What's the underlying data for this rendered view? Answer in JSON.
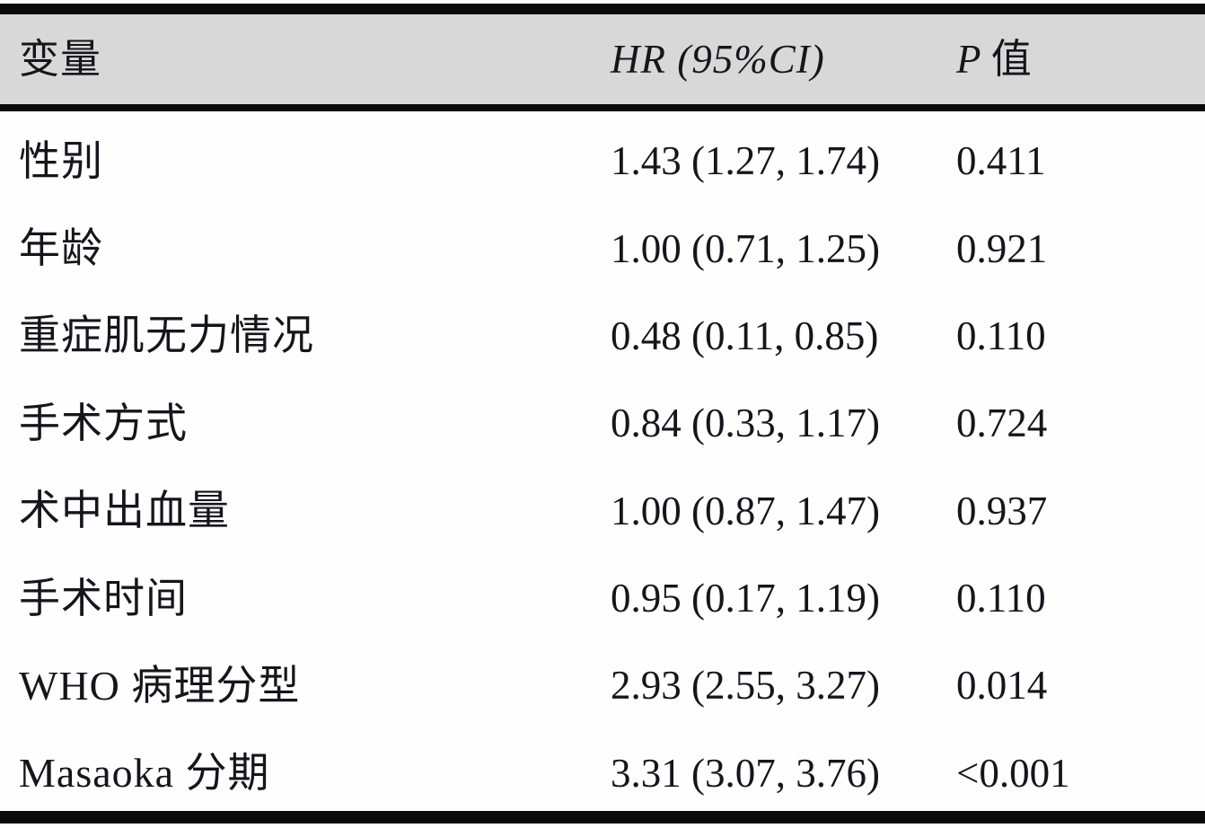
{
  "table": {
    "title_semantic": "univariate-analysis-hr-table",
    "header": {
      "variable": "变量",
      "hr": "HR (95%CI)",
      "p_italic": "P",
      "p_rest": " 值"
    },
    "rows": [
      {
        "variable": "性别",
        "hr": "1.43 (1.27, 1.74)",
        "p": "0.411"
      },
      {
        "variable": "年龄",
        "hr": "1.00 (0.71, 1.25)",
        "p": "0.921"
      },
      {
        "variable": "重症肌无力情况",
        "hr": "0.48 (0.11, 0.85)",
        "p": "0.110"
      },
      {
        "variable": "手术方式",
        "hr": "0.84 (0.33, 1.17)",
        "p": "0.724"
      },
      {
        "variable": "术中出血量",
        "hr": "1.00 (0.87, 1.47)",
        "p": "0.937"
      },
      {
        "variable": "手术时间",
        "hr": "0.95 (0.17, 1.19)",
        "p": "0.110"
      },
      {
        "variable": "WHO 病理分型",
        "hr": "2.93 (2.55, 3.27)",
        "p": "0.014"
      },
      {
        "variable": "Masaoka 分期",
        "hr": "3.31 (3.07, 3.76)",
        "p": "<0.001"
      }
    ]
  },
  "chart_data": {
    "type": "table",
    "columns": [
      "变量",
      "HR (95%CI)",
      "P 值"
    ],
    "rows": [
      [
        "性别",
        "1.43 (1.27, 1.74)",
        "0.411"
      ],
      [
        "年龄",
        "1.00 (0.71, 1.25)",
        "0.921"
      ],
      [
        "重症肌无力情况",
        "0.48 (0.11, 0.85)",
        "0.110"
      ],
      [
        "手术方式",
        "0.84 (0.33, 1.17)",
        "0.724"
      ],
      [
        "术中出血量",
        "1.00 (0.87, 1.47)",
        "0.937"
      ],
      [
        "手术时间",
        "0.95 (0.17, 1.19)",
        "0.110"
      ],
      [
        "WHO 病理分型",
        "2.93 (2.55, 3.27)",
        "0.014"
      ],
      [
        "Masaoka 分期",
        "3.31 (3.07, 3.76)",
        "<0.001"
      ]
    ]
  },
  "colors": {
    "header_bg": "#d8d8d8",
    "border": "#0a0a0a",
    "text": "#15151c"
  }
}
